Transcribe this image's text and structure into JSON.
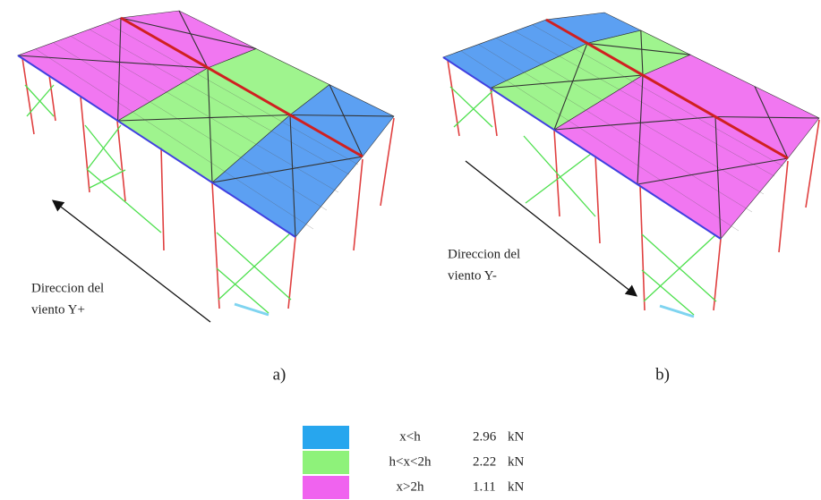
{
  "panels": [
    {
      "label": "a)",
      "wind_label": [
        "Direccion del",
        "viento Y+"
      ]
    },
    {
      "label": "b)",
      "wind_label": [
        "Direccion del",
        "viento Y-"
      ]
    }
  ],
  "legend": [
    {
      "zone": "x<h",
      "value": 2.96,
      "unit": "kN",
      "color": "#27a6ee"
    },
    {
      "zone": "h<x<2h",
      "value": 2.22,
      "unit": "kN",
      "color": "#8ef27a"
    },
    {
      "zone": "x>2h",
      "value": 1.11,
      "unit": "kN",
      "color": "#f063ef"
    }
  ]
}
